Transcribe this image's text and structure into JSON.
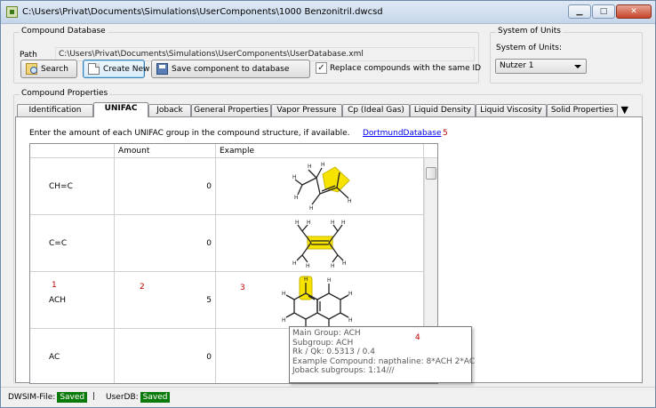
{
  "window": {
    "title": "C:\\Users\\Privat\\Documents\\Simulations\\UserComponents\\1000 Benzonitril.dwcsd",
    "min_glyph": "▁",
    "max_glyph": "□",
    "close_glyph": "✕"
  },
  "compound_database": {
    "legend": "Compound Database",
    "path_label": "Path",
    "path_value": "C:\\Users\\Privat\\Documents\\Simulations\\UserComponents\\UserDatabase.xml",
    "search_label": "Search",
    "create_new_label": "Create New",
    "save_label": "Save component to database",
    "replace_checkbox_label": "Replace compounds with the same ID",
    "replace_checked": "✓"
  },
  "system_of_units": {
    "legend": "System of Units",
    "label": "System of Units:",
    "selected": "Nutzer 1"
  },
  "compound_properties": {
    "legend": "Compound Properties",
    "tabs": [
      {
        "label": "Identification"
      },
      {
        "label": "UNIFAC"
      },
      {
        "label": "Joback"
      },
      {
        "label": "General Properties"
      },
      {
        "label": "Vapor Pressure"
      },
      {
        "label": "Cp (Ideal Gas)"
      },
      {
        "label": "Liquid Density"
      },
      {
        "label": "Liquid Viscosity"
      },
      {
        "label": "Solid Properties"
      }
    ],
    "overflow_glyph": "▼"
  },
  "unifac": {
    "instruction": "Enter the amount of each UNIFAC group in the compound structure, if available.",
    "link": "DortmundDatabase",
    "columns": [
      "",
      "Amount",
      "Example"
    ],
    "rows": [
      {
        "group": "CH=C",
        "amount": "0"
      },
      {
        "group": "C=C",
        "amount": "0"
      },
      {
        "group": "ACH",
        "amount": "5"
      },
      {
        "group": "AC",
        "amount": "0"
      }
    ],
    "markers": [
      "1",
      "2",
      "3",
      "4",
      "5"
    ]
  },
  "tooltip": {
    "main_group": "Main Group: ACH",
    "subgroup": "Subgroup: ACH",
    "rk_qk": "Rk / Qk: 0.5313 / 0.4",
    "example": "Example Compound: napthaline: 8*ACH 2*AC",
    "joback": "Joback subgroups: 1:14///"
  },
  "status": {
    "dwsim_label": "DWSIM-File:",
    "dwsim_value": "Saved",
    "separator": "|",
    "userdb_label": "UserDB:",
    "userdb_value": "Saved"
  }
}
